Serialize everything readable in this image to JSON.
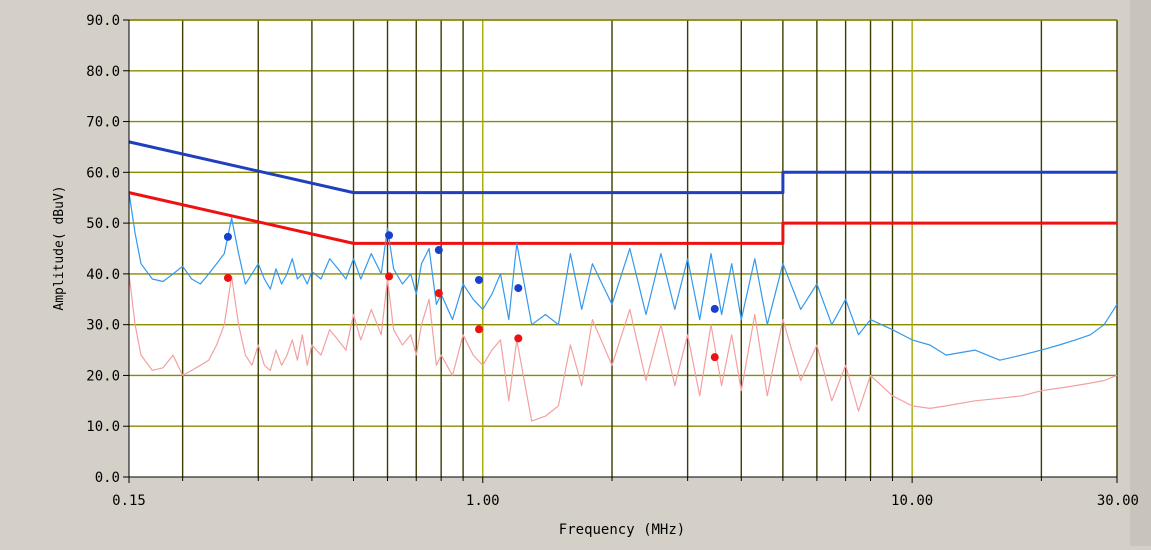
{
  "chart_data": {
    "type": "line",
    "title": "",
    "xlabel": "Frequency (MHz)",
    "ylabel": "Amplitude( dBuV)",
    "x_scale": "log",
    "xlim": [
      0.15,
      30.0
    ],
    "ylim": [
      0.0,
      90.0
    ],
    "grid": true,
    "x_tick_labels": [
      {
        "value": 0.15,
        "label": "0.15"
      },
      {
        "value": 1.0,
        "label": "1.00"
      },
      {
        "value": 10.0,
        "label": "10.00"
      },
      {
        "value": 30.0,
        "label": "30.00"
      }
    ],
    "x_minor_grid": [
      0.2,
      0.3,
      0.4,
      0.5,
      0.6,
      0.7,
      0.8,
      0.9,
      2,
      3,
      4,
      5,
      6,
      7,
      8,
      9,
      20
    ],
    "y_tick_labels": [
      {
        "value": 0,
        "label": "0.0"
      },
      {
        "value": 10,
        "label": "10.0"
      },
      {
        "value": 20,
        "label": "20.0"
      },
      {
        "value": 30,
        "label": "30.0"
      },
      {
        "value": 40,
        "label": "40.0"
      },
      {
        "value": 50,
        "label": "50.0"
      },
      {
        "value": 60,
        "label": "60.0"
      },
      {
        "value": 70,
        "label": "70.0"
      },
      {
        "value": 80,
        "label": "80.0"
      },
      {
        "value": 90,
        "label": "90.0"
      }
    ],
    "colors": {
      "plot_background": "#ffffff",
      "grid": "#8a8a00",
      "limit_qp": "#1f3fbf",
      "limit_avg": "#ee1111",
      "trace_peak": "#3399ee",
      "trace_avg": "#f4a0a0",
      "marker_qp": "#1a3fcc",
      "marker_avg": "#ee1111"
    },
    "series": [
      {
        "role": "limit_qp",
        "x": [
          0.15,
          0.5,
          0.5,
          5.0,
          5.0,
          30.0
        ],
        "y": [
          66.0,
          56.0,
          56.0,
          56.0,
          60.0,
          60.0
        ]
      },
      {
        "role": "limit_avg",
        "x": [
          0.15,
          0.5,
          0.5,
          5.0,
          5.0,
          30.0
        ],
        "y": [
          56.0,
          46.0,
          46.0,
          46.0,
          50.0,
          50.0
        ]
      },
      {
        "role": "trace_peak",
        "x": [
          0.15,
          0.155,
          0.16,
          0.17,
          0.18,
          0.19,
          0.2,
          0.21,
          0.22,
          0.23,
          0.24,
          0.25,
          0.26,
          0.27,
          0.28,
          0.29,
          0.3,
          0.31,
          0.32,
          0.33,
          0.34,
          0.35,
          0.36,
          0.37,
          0.38,
          0.39,
          0.4,
          0.42,
          0.44,
          0.46,
          0.48,
          0.5,
          0.52,
          0.55,
          0.58,
          0.6,
          0.62,
          0.65,
          0.68,
          0.7,
          0.72,
          0.75,
          0.78,
          0.8,
          0.85,
          0.9,
          0.95,
          1.0,
          1.05,
          1.1,
          1.15,
          1.2,
          1.3,
          1.4,
          1.5,
          1.6,
          1.7,
          1.8,
          2.0,
          2.2,
          2.4,
          2.6,
          2.8,
          3.0,
          3.2,
          3.4,
          3.6,
          3.8,
          4.0,
          4.3,
          4.6,
          5.0,
          5.5,
          6.0,
          6.5,
          7.0,
          7.5,
          8.0,
          9.0,
          10.0,
          11.0,
          12.0,
          14.0,
          16.0,
          18.0,
          20.0,
          22.0,
          24.0,
          26.0,
          28.0,
          30.0
        ],
        "y": [
          56.0,
          48.0,
          42.0,
          39.0,
          38.5,
          40.0,
          41.5,
          39.0,
          38.0,
          40.0,
          42.0,
          44.0,
          51.0,
          44.0,
          38.0,
          40.0,
          42.0,
          39.0,
          37.0,
          41.0,
          38.0,
          40.0,
          43.0,
          39.0,
          40.0,
          38.0,
          40.5,
          39.0,
          43.0,
          41.0,
          39.0,
          43.0,
          39.0,
          44.0,
          40.0,
          49.0,
          41.0,
          38.0,
          40.0,
          36.0,
          42.0,
          45.0,
          34.0,
          36.0,
          31.0,
          38.0,
          35.0,
          33.0,
          36.0,
          40.0,
          31.0,
          46.0,
          30.0,
          32.0,
          30.0,
          44.0,
          33.0,
          42.0,
          34.0,
          45.0,
          32.0,
          44.0,
          33.0,
          43.0,
          31.0,
          44.0,
          32.0,
          42.0,
          31.0,
          43.0,
          30.0,
          42.0,
          33.0,
          38.0,
          30.0,
          35.0,
          28.0,
          31.0,
          29.0,
          27.0,
          26.0,
          24.0,
          25.0,
          23.0,
          24.0,
          25.0,
          26.0,
          27.0,
          28.0,
          30.0,
          34.0
        ]
      },
      {
        "role": "trace_avg",
        "x": [
          0.15,
          0.155,
          0.16,
          0.17,
          0.18,
          0.19,
          0.2,
          0.21,
          0.22,
          0.23,
          0.24,
          0.25,
          0.26,
          0.27,
          0.28,
          0.29,
          0.3,
          0.31,
          0.32,
          0.33,
          0.34,
          0.35,
          0.36,
          0.37,
          0.38,
          0.39,
          0.4,
          0.42,
          0.44,
          0.46,
          0.48,
          0.5,
          0.52,
          0.55,
          0.58,
          0.6,
          0.62,
          0.65,
          0.68,
          0.7,
          0.72,
          0.75,
          0.78,
          0.8,
          0.85,
          0.9,
          0.95,
          1.0,
          1.05,
          1.1,
          1.15,
          1.2,
          1.3,
          1.4,
          1.5,
          1.6,
          1.7,
          1.8,
          2.0,
          2.2,
          2.4,
          2.6,
          2.8,
          3.0,
          3.2,
          3.4,
          3.6,
          3.8,
          4.0,
          4.3,
          4.6,
          5.0,
          5.5,
          6.0,
          6.5,
          7.0,
          7.5,
          8.0,
          9.0,
          10.0,
          11.0,
          12.0,
          14.0,
          16.0,
          18.0,
          20.0,
          22.0,
          24.0,
          26.0,
          28.0,
          30.0
        ],
        "y": [
          40.0,
          30.0,
          24.0,
          21.0,
          21.5,
          24.0,
          20.0,
          21.0,
          22.0,
          23.0,
          26.0,
          30.0,
          39.5,
          30.0,
          24.0,
          22.0,
          26.0,
          22.0,
          21.0,
          25.0,
          22.0,
          24.0,
          27.0,
          23.0,
          28.0,
          22.0,
          26.0,
          24.0,
          29.0,
          27.0,
          25.0,
          32.0,
          27.0,
          33.0,
          28.0,
          39.0,
          29.0,
          26.0,
          28.0,
          24.0,
          30.0,
          35.0,
          22.0,
          24.0,
          20.0,
          28.0,
          24.0,
          22.0,
          25.0,
          27.0,
          15.0,
          27.0,
          11.0,
          12.0,
          14.0,
          26.0,
          18.0,
          31.0,
          22.0,
          33.0,
          19.0,
          30.0,
          18.0,
          28.0,
          16.0,
          30.0,
          18.0,
          28.0,
          17.0,
          32.0,
          16.0,
          31.0,
          19.0,
          26.0,
          15.0,
          22.0,
          13.0,
          20.0,
          16.0,
          14.0,
          13.5,
          14.0,
          15.0,
          15.5,
          16.0,
          17.0,
          17.5,
          18.0,
          18.5,
          19.0,
          20.0
        ]
      }
    ],
    "markers_qp": [
      {
        "x": 0.255,
        "y": 47.3
      },
      {
        "x": 0.605,
        "y": 47.6
      },
      {
        "x": 0.79,
        "y": 44.7
      },
      {
        "x": 0.98,
        "y": 38.8
      },
      {
        "x": 1.21,
        "y": 37.2
      },
      {
        "x": 3.47,
        "y": 33.1
      }
    ],
    "markers_avg": [
      {
        "x": 0.255,
        "y": 39.2
      },
      {
        "x": 0.605,
        "y": 39.5
      },
      {
        "x": 0.79,
        "y": 36.2
      },
      {
        "x": 0.98,
        "y": 29.1
      },
      {
        "x": 1.21,
        "y": 27.3
      },
      {
        "x": 3.47,
        "y": 23.6
      }
    ]
  }
}
